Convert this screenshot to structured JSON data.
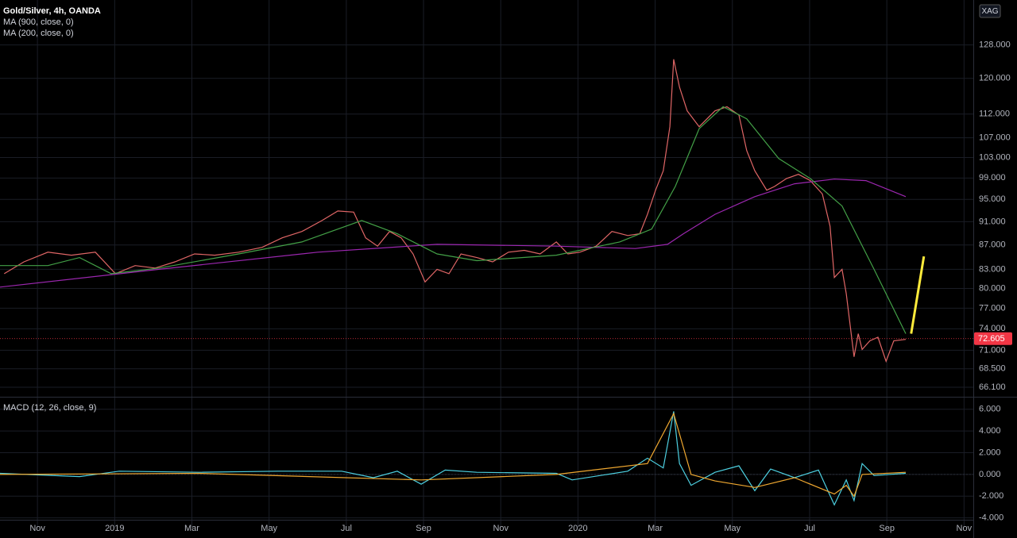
{
  "chart_data": [
    {
      "type": "line",
      "title": "Gold/Silver, 4h, OANDA",
      "log": true,
      "grid": true,
      "currency": "XAG",
      "last_price": 72.605,
      "last_price_color": "#f23645",
      "xlim": [
        -0.97,
        24.24
      ],
      "ylim": [
        64.9,
        139.6
      ],
      "yticks": [
        {
          "value": 66.1,
          "label": "66.100"
        },
        {
          "value": 68.5,
          "label": "68.500"
        },
        {
          "value": 71,
          "label": "71.000"
        },
        {
          "value": 74,
          "label": "74.000"
        },
        {
          "value": 77,
          "label": "77.000"
        },
        {
          "value": 80,
          "label": "80.000"
        },
        {
          "value": 83,
          "label": "83.000"
        },
        {
          "value": 87,
          "label": "87.000"
        },
        {
          "value": 91,
          "label": "91.000"
        },
        {
          "value": 95,
          "label": "95.000"
        },
        {
          "value": 99,
          "label": "99.000"
        },
        {
          "value": 103,
          "label": "103.000"
        },
        {
          "value": 107,
          "label": "107.000"
        },
        {
          "value": 112,
          "label": "112.000"
        },
        {
          "value": 120,
          "label": "120.000"
        },
        {
          "value": 128,
          "label": "128.000"
        }
      ],
      "series": [
        {
          "color": "#e06666",
          "x": [
            -0.86,
            -0.35,
            0.27,
            0.88,
            1.5,
            2.02,
            2.53,
            3.05,
            3.56,
            4.07,
            4.59,
            5.21,
            5.82,
            6.34,
            6.85,
            7.37,
            7.78,
            8.19,
            8.5,
            8.81,
            9.12,
            9.42,
            9.73,
            10.04,
            10.35,
            10.66,
            10.97,
            11.38,
            11.79,
            12.2,
            12.61,
            13.02,
            13.44,
            13.74,
            14.05,
            14.47,
            14.88,
            15.29,
            15.6,
            15.8,
            16.01,
            16.21,
            16.38,
            16.48,
            16.63,
            16.83,
            17.14,
            17.55,
            17.86,
            18.17,
            18.37,
            18.58,
            18.89,
            19.09,
            19.4,
            19.71,
            20.02,
            20.33,
            20.53,
            20.64,
            20.84,
            20.95,
            21.15,
            21.26,
            21.36,
            21.56,
            21.77,
            21.98,
            22.18,
            22.49
          ],
          "values": [
            82.3,
            84.2,
            85.8,
            85.3,
            85.8,
            82.3,
            83.6,
            83.2,
            84.2,
            85.5,
            85.3,
            85.8,
            86.6,
            88.2,
            89.3,
            91.2,
            92.9,
            92.7,
            88.2,
            86.8,
            89.3,
            88.2,
            85.5,
            81.0,
            83.0,
            82.3,
            85.5,
            84.9,
            84.2,
            85.8,
            86.1,
            85.5,
            87.5,
            85.5,
            85.8,
            86.8,
            89.3,
            88.6,
            88.9,
            92.3,
            96.7,
            100.4,
            109.3,
            124.5,
            118.0,
            112.7,
            109.3,
            112.7,
            113.6,
            111.8,
            104.4,
            100.4,
            96.7,
            97.4,
            98.9,
            99.7,
            98.5,
            96.0,
            90.2,
            81.7,
            83.0,
            79.2,
            70.1,
            73.3,
            71.1,
            72.3,
            72.8,
            69.5,
            72.3,
            72.5
          ]
        },
        {
          "name": "MA (900, close, 0)",
          "color": "#9c27b0",
          "x": [
            -0.97,
            3.15,
            7.26,
            10.35,
            13.44,
            15.49,
            16.32,
            16.73,
            17.55,
            18.58,
            19.61,
            20.64,
            21.46,
            22.49
          ],
          "values": [
            80.2,
            83.0,
            85.8,
            87.1,
            86.8,
            86.4,
            87.1,
            88.9,
            92.3,
            95.5,
            97.9,
            98.8,
            98.5,
            95.5
          ]
        },
        {
          "name": "MA (200, close, 0)",
          "color": "#43a047",
          "x": [
            -0.97,
            0.27,
            1.09,
            1.91,
            3.15,
            5.21,
            6.85,
            8.4,
            9.32,
            10.35,
            11.38,
            13.44,
            15.08,
            15.91,
            16.52,
            17.14,
            17.76,
            18.37,
            19.2,
            20.02,
            20.84,
            21.67,
            22.49
          ],
          "values": [
            83.6,
            83.6,
            84.9,
            82.3,
            83.2,
            85.5,
            87.5,
            91.2,
            88.9,
            85.5,
            84.4,
            85.3,
            87.5,
            89.7,
            97.4,
            108.9,
            113.6,
            111.0,
            102.8,
            98.9,
            93.8,
            83.0,
            73.3
          ]
        }
      ],
      "trend_line": {
        "color": "#ffeb3b",
        "x": [
          22.63,
          22.96
        ],
        "values": [
          73.3,
          85.1
        ]
      }
    },
    {
      "type": "line",
      "title": "MACD (12, 26, close, 9)",
      "grid": true,
      "xlim": [
        -0.97,
        24.24
      ],
      "ylim": [
        -4.9,
        7.15
      ],
      "yticks": [
        {
          "value": -4,
          "label": "-4.000"
        },
        {
          "value": -2,
          "label": "-2.000"
        },
        {
          "value": 0,
          "label": "0.000"
        },
        {
          "value": 2,
          "label": "2.000"
        },
        {
          "value": 4,
          "label": "4.000"
        },
        {
          "value": 6,
          "label": "6.000"
        }
      ],
      "xticks": [
        {
          "value": 0,
          "label": "Nov"
        },
        {
          "value": 2,
          "label": "2019"
        },
        {
          "value": 4,
          "label": "Mar"
        },
        {
          "value": 6,
          "label": "May"
        },
        {
          "value": 8,
          "label": "Jul"
        },
        {
          "value": 10,
          "label": "Sep"
        },
        {
          "value": 12,
          "label": "Nov"
        },
        {
          "value": 14,
          "label": "2020"
        },
        {
          "value": 16,
          "label": "Mar"
        },
        {
          "value": 18,
          "label": "May"
        },
        {
          "value": 20,
          "label": "Jul"
        },
        {
          "value": 22,
          "label": "Sep"
        },
        {
          "value": 24,
          "label": "Nov"
        }
      ],
      "series": [
        {
          "color": "#4dd0e1",
          "x": [
            -0.97,
            1.09,
            2.12,
            4.18,
            6.23,
            7.88,
            8.7,
            9.32,
            9.94,
            10.56,
            11.38,
            13.44,
            13.85,
            15.29,
            15.8,
            16.21,
            16.48,
            16.63,
            16.93,
            17.55,
            18.17,
            18.58,
            18.99,
            19.61,
            20.23,
            20.64,
            20.95,
            21.15,
            21.36,
            21.67,
            22.49
          ],
          "values": [
            0.1,
            -0.2,
            0.3,
            0.2,
            0.3,
            0.3,
            -0.3,
            0.3,
            -0.9,
            0.4,
            0.2,
            0.1,
            -0.5,
            0.3,
            1.5,
            0.6,
            5.8,
            1.0,
            -1.0,
            0.2,
            0.8,
            -1.5,
            0.5,
            -0.3,
            0.4,
            -2.8,
            -0.5,
            -2.4,
            1.0,
            -0.1,
            0.1
          ]
        },
        {
          "color": "#f0a830",
          "x": [
            -0.97,
            4.18,
            9.94,
            13.44,
            15.8,
            16.48,
            16.93,
            17.55,
            18.58,
            19.61,
            20.64,
            20.95,
            21.15,
            21.36,
            22.49
          ],
          "values": [
            0.0,
            0.1,
            -0.5,
            0.0,
            1.0,
            5.6,
            0.0,
            -0.6,
            -1.2,
            -0.3,
            -1.8,
            -1.0,
            -2.0,
            0.0,
            0.2
          ]
        }
      ]
    }
  ]
}
